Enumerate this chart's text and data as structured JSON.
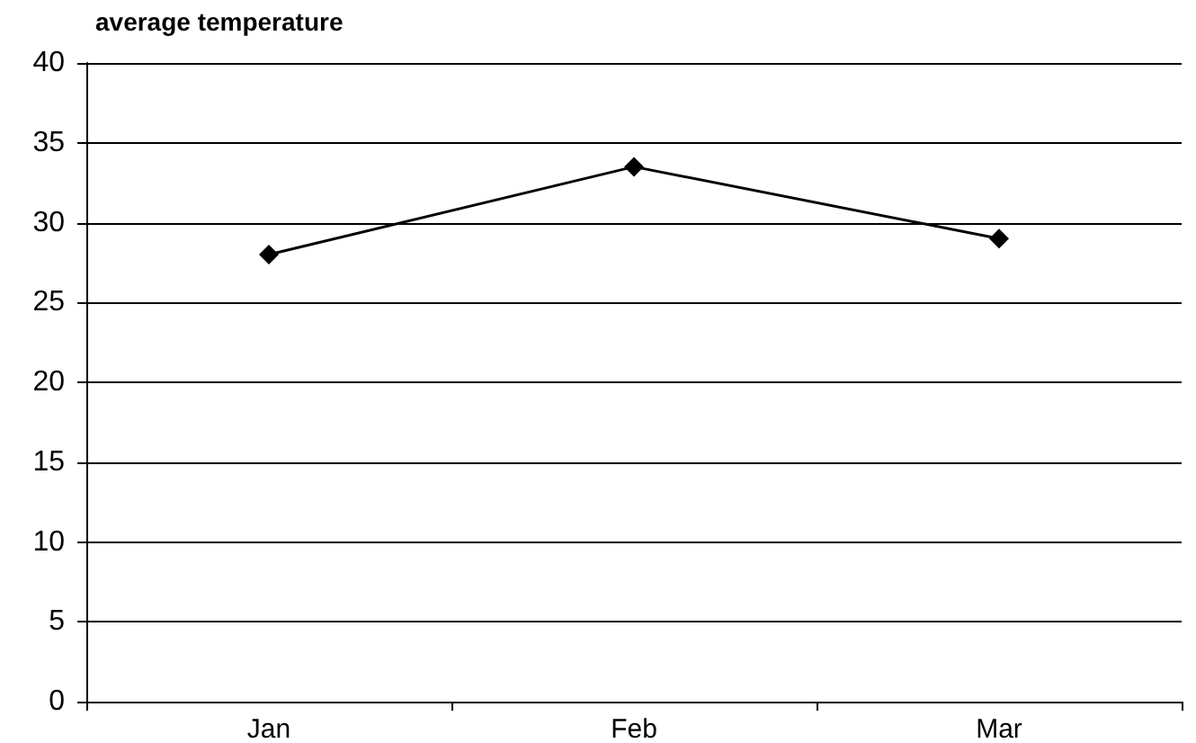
{
  "chart_data": {
    "type": "line",
    "title": "average temperature",
    "categories": [
      "Jan",
      "Feb",
      "Mar"
    ],
    "series": [
      {
        "color": "#000000",
        "values": [
          28,
          33.5,
          29
        ]
      }
    ],
    "ylim": [
      0,
      40
    ],
    "yticks": [
      0,
      5,
      10,
      15,
      20,
      25,
      30,
      35,
      40
    ],
    "grid": "y",
    "marker": "diamond",
    "line_style": "solid"
  }
}
